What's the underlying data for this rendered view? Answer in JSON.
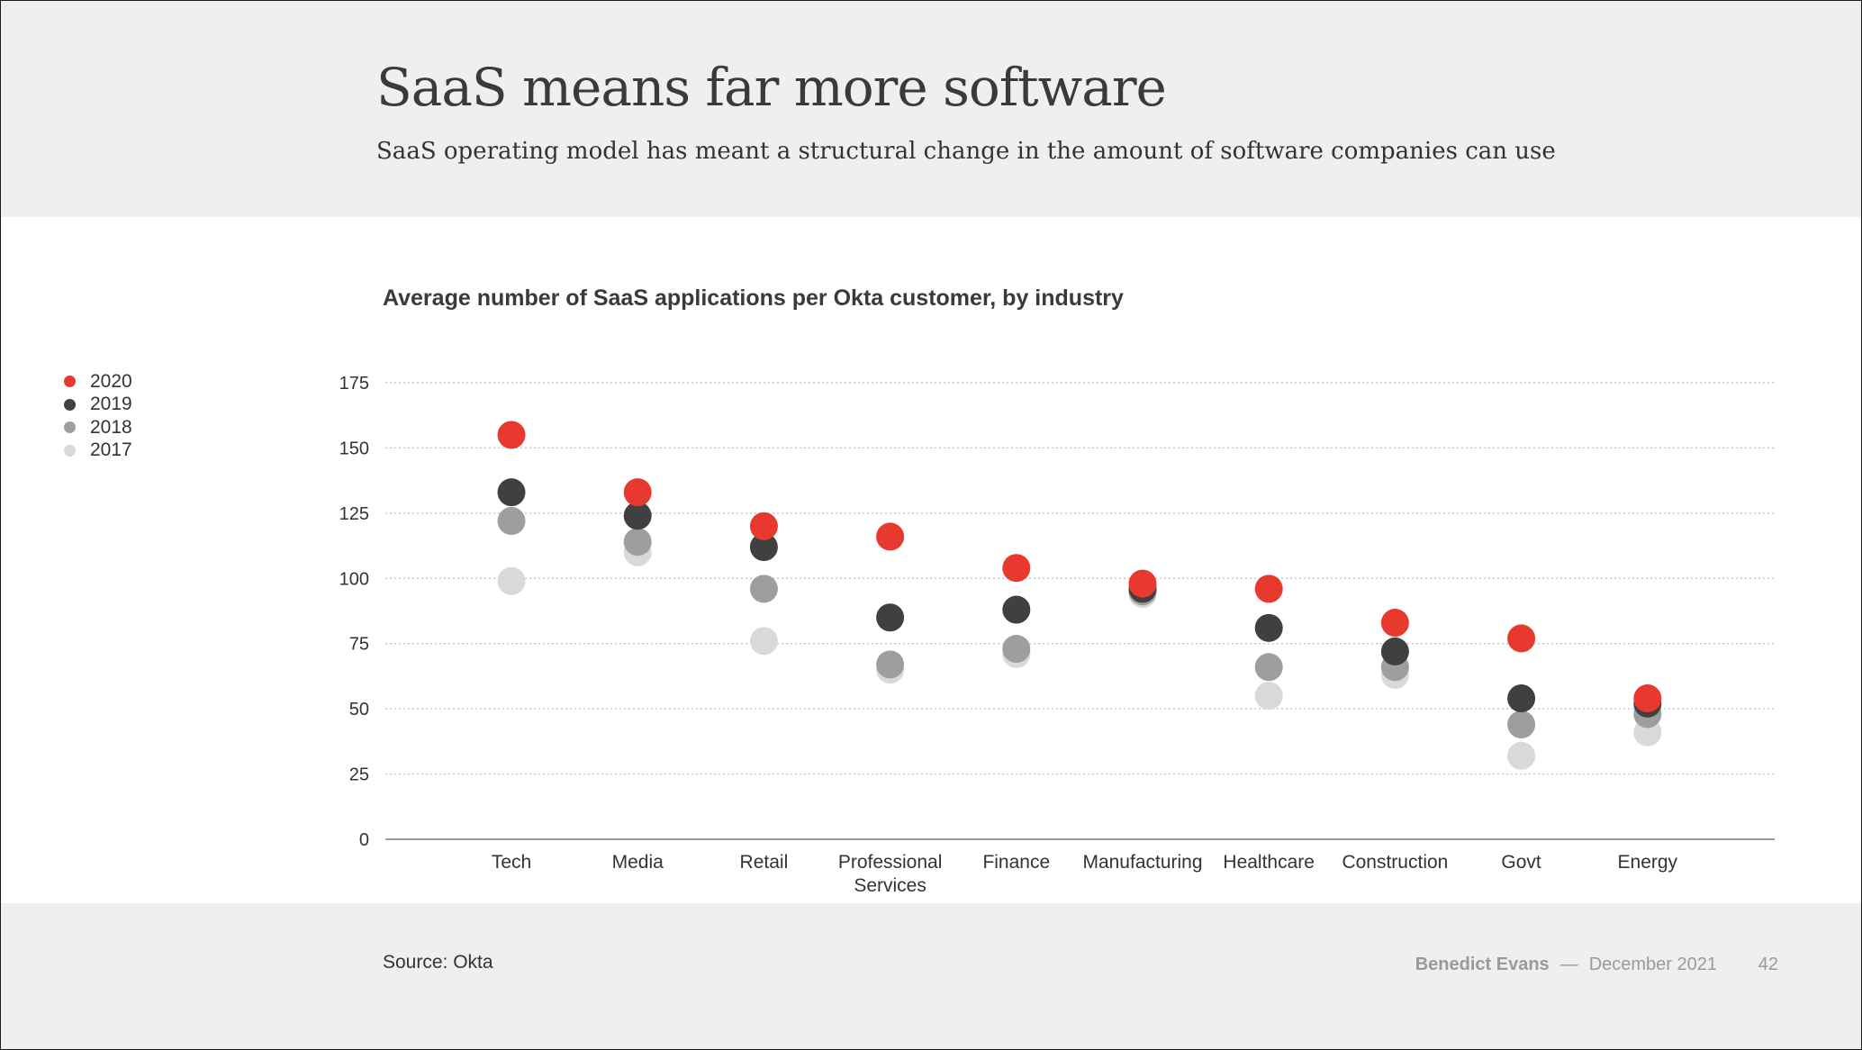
{
  "header": {
    "title": "SaaS means far more software",
    "subtitle": "SaaS operating model has meant a structural change in the amount of software companies can use"
  },
  "chart_data": {
    "type": "scatter",
    "title": "Average number of SaaS applications per Okta customer, by industry",
    "xlabel": "",
    "ylabel": "",
    "ylim": [
      0,
      175
    ],
    "yticks": [
      0,
      25,
      50,
      75,
      100,
      125,
      150,
      175
    ],
    "grid": true,
    "legend_position": "left",
    "categories": [
      [
        "Tech"
      ],
      [
        "Media"
      ],
      [
        "Retail"
      ],
      [
        "Professional",
        "Services"
      ],
      [
        "Finance"
      ],
      [
        "Manufacturing"
      ],
      [
        "Healthcare"
      ],
      [
        "Construction"
      ],
      [
        "Govt"
      ],
      [
        "Energy"
      ]
    ],
    "series": [
      {
        "name": "2017",
        "color": "#d9d9d9",
        "values": [
          99,
          110,
          76,
          65,
          71,
          94,
          55,
          63,
          32,
          41
        ]
      },
      {
        "name": "2018",
        "color": "#9e9e9e",
        "values": [
          122,
          114,
          96,
          67,
          73,
          95,
          66,
          66,
          44,
          48
        ]
      },
      {
        "name": "2019",
        "color": "#404040",
        "values": [
          133,
          124,
          112,
          85,
          88,
          96,
          81,
          72,
          54,
          52
        ]
      },
      {
        "name": "2020",
        "color": "#e8392f",
        "values": [
          155,
          133,
          120,
          116,
          104,
          98,
          96,
          83,
          77,
          54
        ]
      }
    ],
    "legend": [
      {
        "name": "2020",
        "color": "#e8392f"
      },
      {
        "name": "2019",
        "color": "#404040"
      },
      {
        "name": "2018",
        "color": "#9e9e9e"
      },
      {
        "name": "2017",
        "color": "#d9d9d9"
      }
    ]
  },
  "footer": {
    "source": "Source: Okta",
    "author": "Benedict Evans",
    "separator": "—",
    "date": "December 2021",
    "page": "42"
  }
}
